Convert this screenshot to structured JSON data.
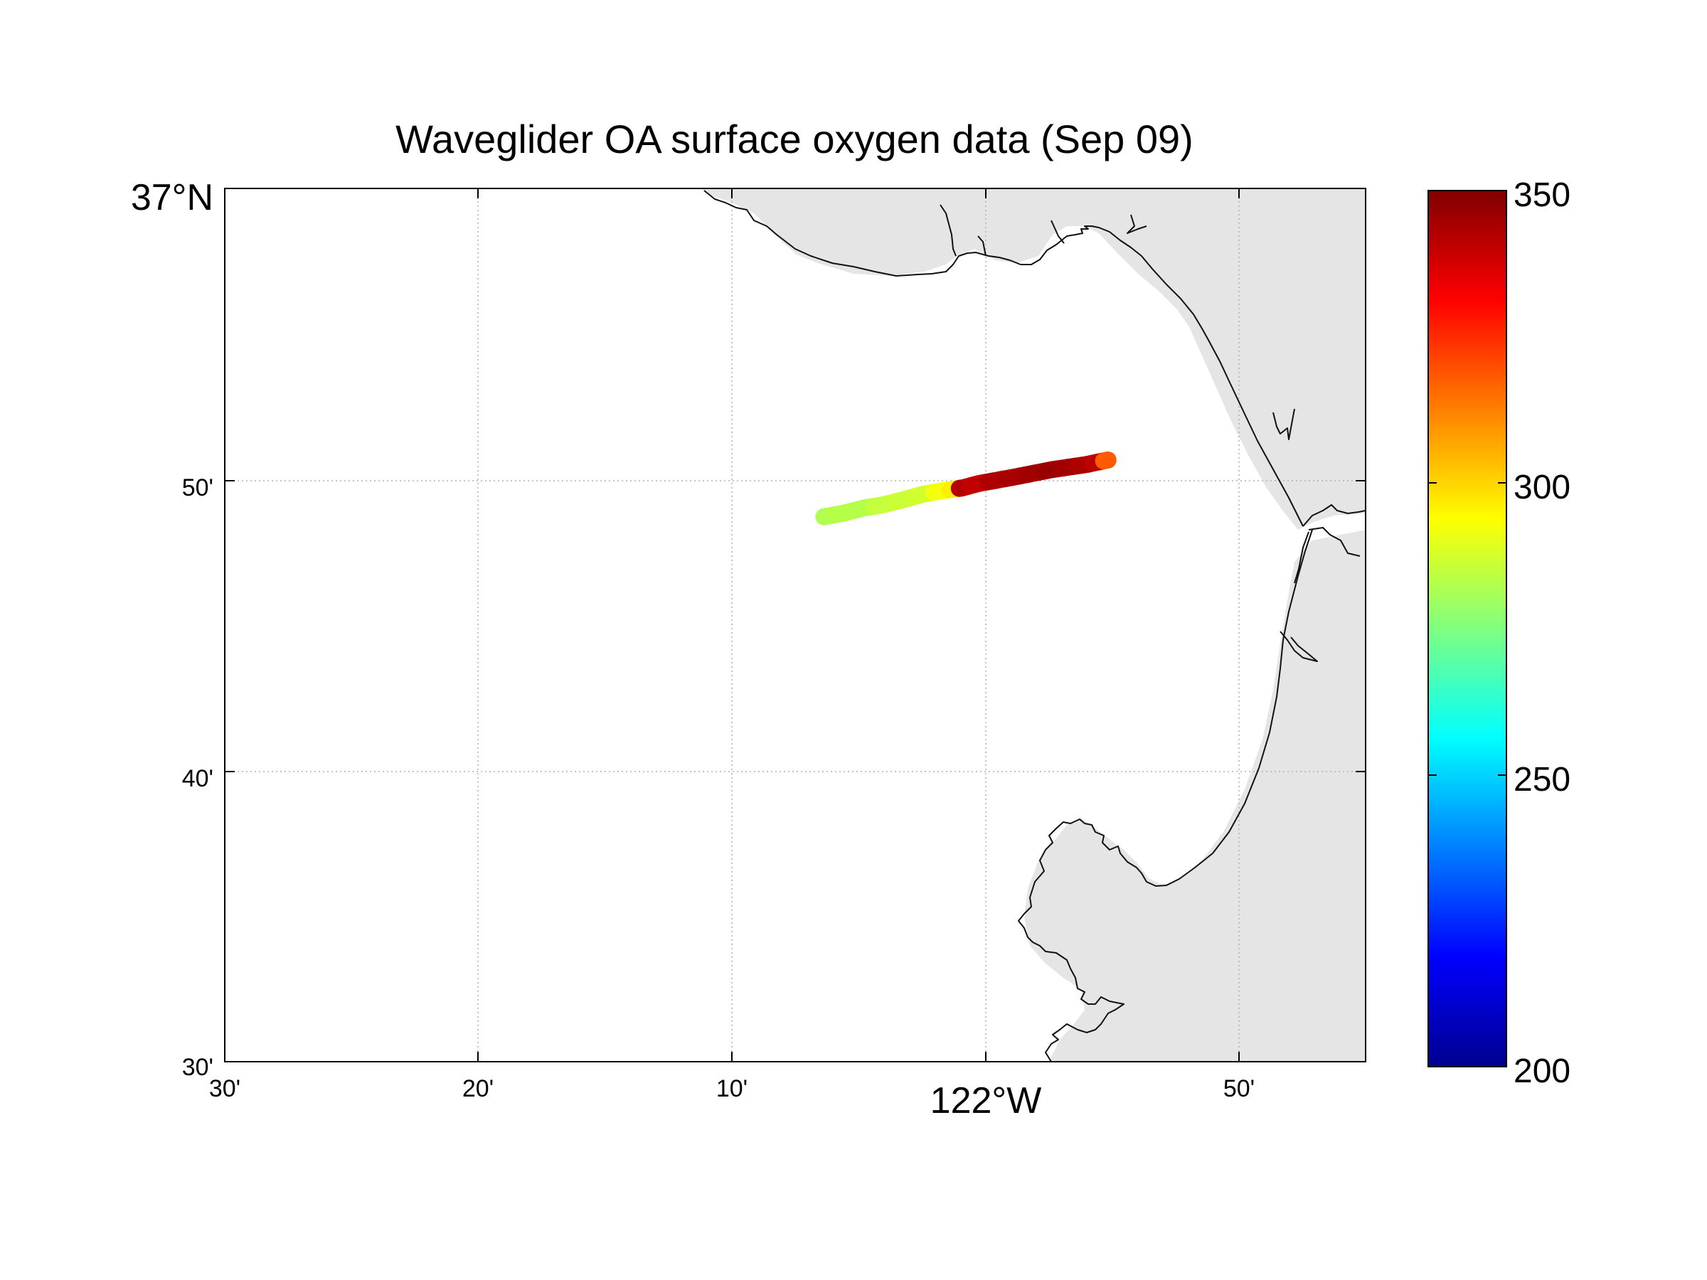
{
  "title": "Waveglider OA surface oxygen data (Sep 09)",
  "map": {
    "lon_range": [
      -122.5,
      -121.725
    ],
    "lat_range": [
      36.5,
      37.0
    ],
    "grid": "dotted"
  },
  "x_ticks": [
    {
      "lon": -122.5,
      "label": "30'"
    },
    {
      "lon": -122.3333,
      "label": "20'"
    },
    {
      "lon": -122.1667,
      "label": "10'"
    },
    {
      "lon": -122.0,
      "label": "122°W",
      "major": true
    },
    {
      "lon": -121.8333,
      "label": "50'"
    }
  ],
  "y_ticks": [
    {
      "lat": 37.0,
      "label": "37°N",
      "major": true
    },
    {
      "lat": 36.8333,
      "label": "50'"
    },
    {
      "lat": 36.6667,
      "label": "40'"
    },
    {
      "lat": 36.5,
      "label": "30'"
    }
  ],
  "colorbar": {
    "min": 200,
    "max": 350,
    "colormap": "jet",
    "ticks": [
      {
        "value": 350,
        "label": "350"
      },
      {
        "value": 300,
        "label": "300"
      },
      {
        "value": 250,
        "label": "250"
      },
      {
        "value": 200,
        "label": "200"
      }
    ]
  },
  "chart_data": {
    "type": "scatter",
    "title": "Waveglider OA surface oxygen data (Sep 09)",
    "x_label": "",
    "y_label": "",
    "points": [
      {
        "lon": -122.093,
        "lat": 36.812,
        "value": 282
      },
      {
        "lon": -122.08,
        "lat": 36.814,
        "value": 283
      },
      {
        "lon": -122.066,
        "lat": 36.817,
        "value": 283
      },
      {
        "lon": -122.052,
        "lat": 36.819,
        "value": 285
      },
      {
        "lon": -122.038,
        "lat": 36.822,
        "value": 286
      },
      {
        "lon": -122.025,
        "lat": 36.825,
        "value": 287
      },
      {
        "lon": -122.012,
        "lat": 36.827,
        "value": 292
      },
      {
        "lon": -122.003,
        "lat": 36.828,
        "value": 296
      },
      {
        "lon": -121.999,
        "lat": 36.8285,
        "value": 342
      },
      {
        "lon": -121.988,
        "lat": 36.831,
        "value": 340
      },
      {
        "lon": -121.975,
        "lat": 36.833,
        "value": 343
      },
      {
        "lon": -121.962,
        "lat": 36.835,
        "value": 344
      },
      {
        "lon": -121.95,
        "lat": 36.837,
        "value": 345
      },
      {
        "lon": -121.938,
        "lat": 36.839,
        "value": 346
      },
      {
        "lon": -121.926,
        "lat": 36.8405,
        "value": 345
      },
      {
        "lon": -121.914,
        "lat": 36.842,
        "value": 343
      },
      {
        "lon": -121.906,
        "lat": 36.8435,
        "value": 341
      },
      {
        "lon": -121.9,
        "lat": 36.8445,
        "value": 318
      }
    ]
  }
}
